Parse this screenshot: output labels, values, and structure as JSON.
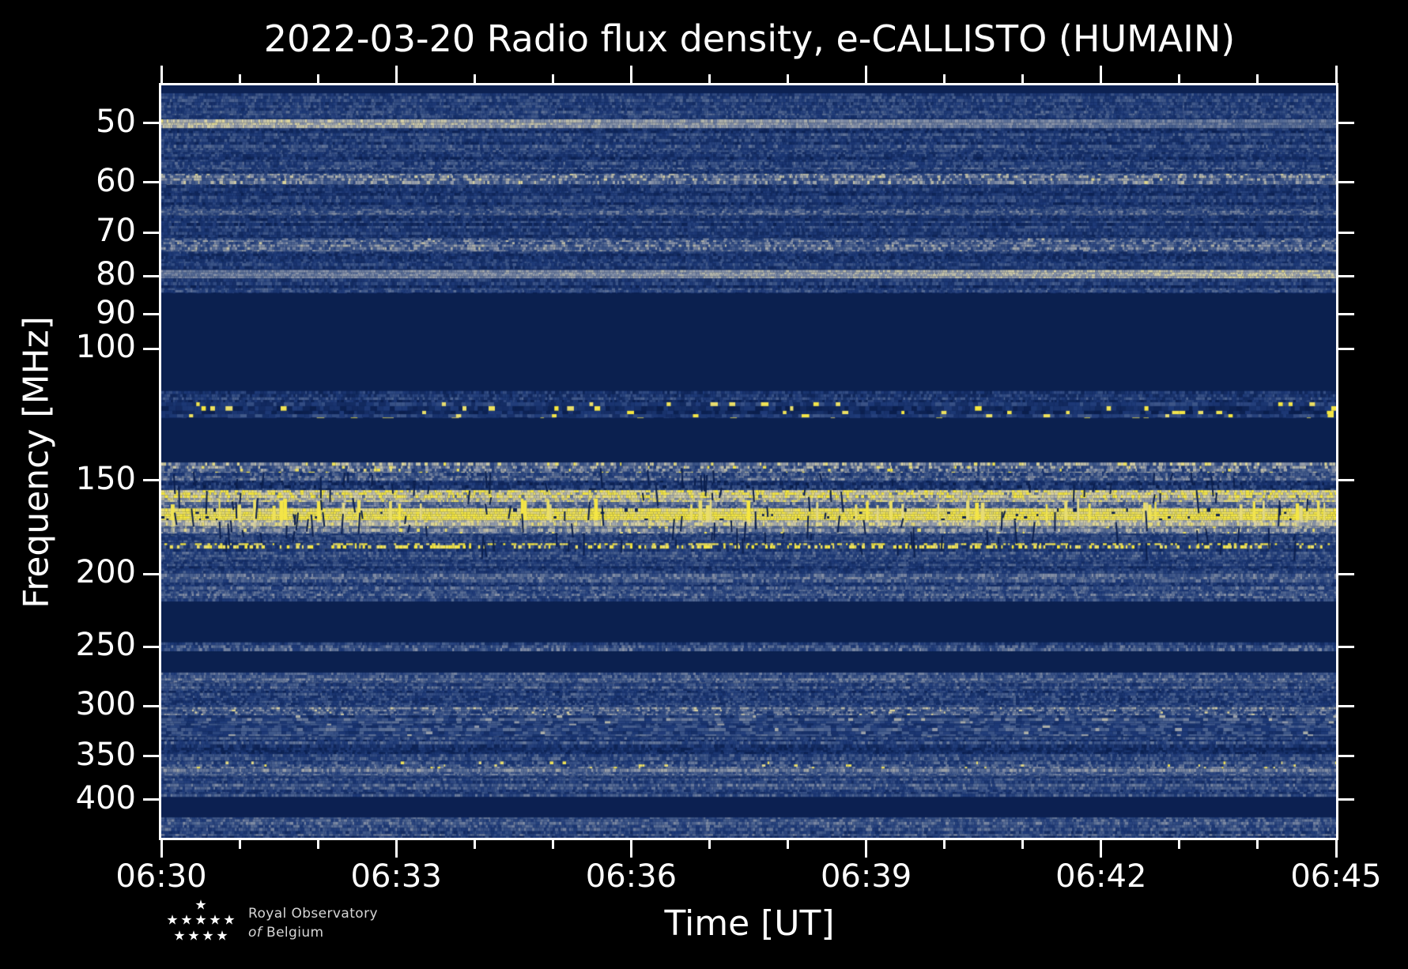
{
  "title": "2022-03-20 Radio flux density, e-CALLISTO (HUMAIN)",
  "x_axis": {
    "label": "Time [UT]",
    "tick_labels": [
      "06:30",
      "06:33",
      "06:36",
      "06:39",
      "06:42",
      "06:45"
    ],
    "minor_ticks_per_interval": 2
  },
  "y_axis": {
    "label": "Frequency [MHz]",
    "tick_labels": [
      "50",
      "60",
      "70",
      "80",
      "90",
      "100",
      "150",
      "200",
      "250",
      "300",
      "350",
      "400"
    ],
    "tick_values_mhz": [
      50,
      60,
      70,
      80,
      90,
      100,
      150,
      200,
      250,
      300,
      350,
      400
    ]
  },
  "logo": {
    "line1": "Royal Observatory",
    "line2_prefix": "of",
    "line2_text": "Belgium",
    "star_icon": "★"
  },
  "colors": {
    "background": "#000000",
    "axis": "#ffffff",
    "text": "#ffffff",
    "logo_text": "#d6d6d6"
  },
  "chart_data": {
    "type": "heatmap",
    "subtype": "radio-spectrogram",
    "title": "2022-03-20 Radio flux density, e-CALLISTO (HUMAIN)",
    "xlabel": "Time [UT]",
    "ylabel": "Frequency [MHz]",
    "x_range": [
      "06:30",
      "06:45"
    ],
    "x_major_tick_interval_min": 3,
    "x_minor_tick_interval_min": 1,
    "y_scale": "log",
    "y_range_mhz": [
      44.5,
      450
    ],
    "legend": "none",
    "grid": false,
    "seed": 42,
    "colormap_stops": [
      [
        0.0,
        "#081a45"
      ],
      [
        0.1,
        "#0c2152"
      ],
      [
        0.35,
        "#1e3a78"
      ],
      [
        0.55,
        "#4a618f"
      ],
      [
        0.72,
        "#9099ab"
      ],
      [
        0.86,
        "#d9d2a6"
      ],
      [
        1.0,
        "#f6e73f"
      ]
    ],
    "bands": [
      {
        "f1": 44.5,
        "f2": 45.6,
        "style": "solid",
        "level": 0.1
      },
      {
        "f1": 45.6,
        "f2": 49.4,
        "style": "noise",
        "level": 0.38,
        "rowVar": 0.1,
        "colVar": 0.16
      },
      {
        "f1": 49.4,
        "f2": 50.8,
        "style": "noise",
        "level": 0.8,
        "rowVar": 0.06,
        "colVar": 0.1,
        "xgain": [
          1.0,
          0.72
        ]
      },
      {
        "f1": 50.8,
        "f2": 58.4,
        "style": "noise",
        "level": 0.36,
        "rowVar": 0.12,
        "colVar": 0.17
      },
      {
        "f1": 58.4,
        "f2": 60.4,
        "style": "noise",
        "level": 0.55,
        "rowVar": 0.08,
        "colVar": 0.22,
        "speckleProb": 0.02,
        "speckleLevel": 0.85
      },
      {
        "f1": 60.4,
        "f2": 65.1,
        "style": "noise",
        "level": 0.34,
        "rowVar": 0.1,
        "colVar": 0.16
      },
      {
        "f1": 65.1,
        "f2": 66.4,
        "style": "noise",
        "level": 0.5,
        "rowVar": 0.06,
        "colVar": 0.18
      },
      {
        "f1": 66.4,
        "f2": 71.2,
        "style": "noise",
        "level": 0.33,
        "rowVar": 0.1,
        "colVar": 0.16
      },
      {
        "f1": 71.2,
        "f2": 74.2,
        "style": "noise",
        "level": 0.52,
        "rowVar": 0.08,
        "colVar": 0.2,
        "speckleProb": 0.015,
        "speckleLevel": 0.8
      },
      {
        "f1": 74.2,
        "f2": 78.5,
        "style": "noise",
        "level": 0.34,
        "rowVar": 0.1,
        "colVar": 0.16
      },
      {
        "f1": 78.5,
        "f2": 80.6,
        "style": "noise",
        "level": 0.82,
        "rowVar": 0.05,
        "colVar": 0.1,
        "xgain": [
          0.78,
          1.0
        ]
      },
      {
        "f1": 80.6,
        "f2": 84.4,
        "style": "noise",
        "level": 0.33,
        "rowVar": 0.12,
        "colVar": 0.16
      },
      {
        "f1": 84.4,
        "f2": 113.9,
        "style": "solid",
        "level": 0.08
      },
      {
        "f1": 113.9,
        "f2": 117.9,
        "style": "noise",
        "level": 0.35,
        "rowVar": 0.1,
        "colVar": 0.18
      },
      {
        "f1": 117.9,
        "f2": 123.9,
        "style": "noise",
        "level": 0.3,
        "rowVar": 0.1,
        "colVar": 0.16,
        "speckleProb": 0.045,
        "speckleLevel": 0.97,
        "cellx": 2,
        "celly": 2
      },
      {
        "f1": 123.9,
        "f2": 141.9,
        "style": "solid",
        "level": 0.08
      },
      {
        "f1": 141.9,
        "f2": 146.5,
        "style": "noise",
        "level": 0.58,
        "rowVar": 0.08,
        "colVar": 0.25,
        "speckleProb": 0.04,
        "speckleLevel": 0.95
      },
      {
        "f1": 146.5,
        "f2": 150.1,
        "style": "noise",
        "level": 0.5,
        "rowVar": 0.08,
        "colVar": 0.2
      },
      {
        "f1": 150.1,
        "f2": 154.5,
        "style": "noise",
        "level": 0.36,
        "rowVar": 0.08,
        "colVar": 0.18,
        "speckleProb": 0.06,
        "speckleLevel": 0.06
      },
      {
        "f1": 154.5,
        "f2": 160.3,
        "style": "noise",
        "level": 0.85,
        "rowVar": 0.06,
        "colVar": 0.14,
        "speckleProb": 0.05,
        "speckleLevel": 0.6
      },
      {
        "f1": 160.3,
        "f2": 163.4,
        "style": "noise",
        "level": 0.58,
        "rowVar": 0.06,
        "colVar": 0.16
      },
      {
        "f1": 163.4,
        "f2": 169.5,
        "style": "noise",
        "level": 0.96,
        "rowVar": 0.03,
        "colVar": 0.06,
        "speckleProb": 0.02,
        "speckleLevel": 0.1,
        "spikes": 0.1
      },
      {
        "f1": 169.5,
        "f2": 172.8,
        "style": "noise",
        "level": 0.82,
        "rowVar": 0.05,
        "colVar": 0.12
      },
      {
        "f1": 172.8,
        "f2": 176.6,
        "style": "noise",
        "level": 0.62,
        "rowVar": 0.06,
        "colVar": 0.16,
        "speckleProb": 0.03,
        "speckleLevel": 0.92
      },
      {
        "f1": 176.6,
        "f2": 181.9,
        "style": "noise",
        "level": 0.38,
        "rowVar": 0.08,
        "colVar": 0.16
      },
      {
        "f1": 181.9,
        "f2": 185.1,
        "style": "noise",
        "level": 0.45,
        "rowVar": 0.06,
        "colVar": 0.18,
        "speckleProb": 0.4,
        "speckleLevel": 0.97
      },
      {
        "f1": 185.1,
        "f2": 199.7,
        "style": "noise",
        "level": 0.4,
        "rowVar": 0.14,
        "colVar": 0.16
      },
      {
        "f1": 199.7,
        "f2": 203.2,
        "style": "noise",
        "level": 0.57,
        "rowVar": 0.06,
        "colVar": 0.16
      },
      {
        "f1": 203.2,
        "f2": 212.4,
        "style": "noise",
        "level": 0.4,
        "rowVar": 0.12,
        "colVar": 0.16
      },
      {
        "f1": 212.4,
        "f2": 217.7,
        "style": "noise",
        "level": 0.48,
        "rowVar": 0.08,
        "colVar": 0.18
      },
      {
        "f1": 217.7,
        "f2": 246.7,
        "style": "solid",
        "level": 0.08
      },
      {
        "f1": 246.7,
        "f2": 253.6,
        "style": "noise",
        "level": 0.42,
        "rowVar": 0.1,
        "colVar": 0.18
      },
      {
        "f1": 253.6,
        "f2": 270.7,
        "style": "solid",
        "level": 0.08
      },
      {
        "f1": 270.7,
        "f2": 279.8,
        "style": "noise",
        "level": 0.55,
        "rowVar": 0.08,
        "colVar": 0.16
      },
      {
        "f1": 279.8,
        "f2": 301.1,
        "style": "noise",
        "level": 0.38,
        "rowVar": 0.12,
        "colVar": 0.18
      },
      {
        "f1": 301.1,
        "f2": 308.7,
        "style": "noise",
        "level": 0.55,
        "rowVar": 0.08,
        "colVar": 0.2,
        "speckleProb": 0.025,
        "speckleLevel": 0.85
      },
      {
        "f1": 308.7,
        "f2": 330.2,
        "style": "noise",
        "level": 0.4,
        "rowVar": 0.12,
        "colVar": 0.18,
        "speckleProb": 0.018,
        "speckleLevel": 0.75,
        "cellx": 2
      },
      {
        "f1": 330.2,
        "f2": 355.8,
        "style": "noise",
        "level": 0.36,
        "rowVar": 0.12,
        "colVar": 0.16
      },
      {
        "f1": 355.8,
        "f2": 363.8,
        "style": "noise",
        "level": 0.5,
        "rowVar": 0.08,
        "colVar": 0.18,
        "speckleProb": 0.035,
        "speckleLevel": 0.93
      },
      {
        "f1": 363.8,
        "f2": 372.9,
        "style": "noise",
        "level": 0.55,
        "rowVar": 0.08,
        "colVar": 0.14
      },
      {
        "f1": 372.9,
        "f2": 397.2,
        "style": "noise",
        "level": 0.42,
        "rowVar": 0.12,
        "colVar": 0.16
      },
      {
        "f1": 397.2,
        "f2": 422.7,
        "style": "solid",
        "level": 0.09
      },
      {
        "f1": 422.7,
        "f2": 432.6,
        "style": "noise",
        "level": 0.55,
        "rowVar": 0.08,
        "colVar": 0.16
      },
      {
        "f1": 432.6,
        "f2": 450.0,
        "style": "noise",
        "level": 0.42,
        "rowVar": 0.14,
        "colVar": 0.18
      }
    ],
    "artifacts": {
      "dropout_slashes": {
        "f_range": [
          148,
          187
        ],
        "count": 140,
        "level": 0.07
      }
    }
  }
}
